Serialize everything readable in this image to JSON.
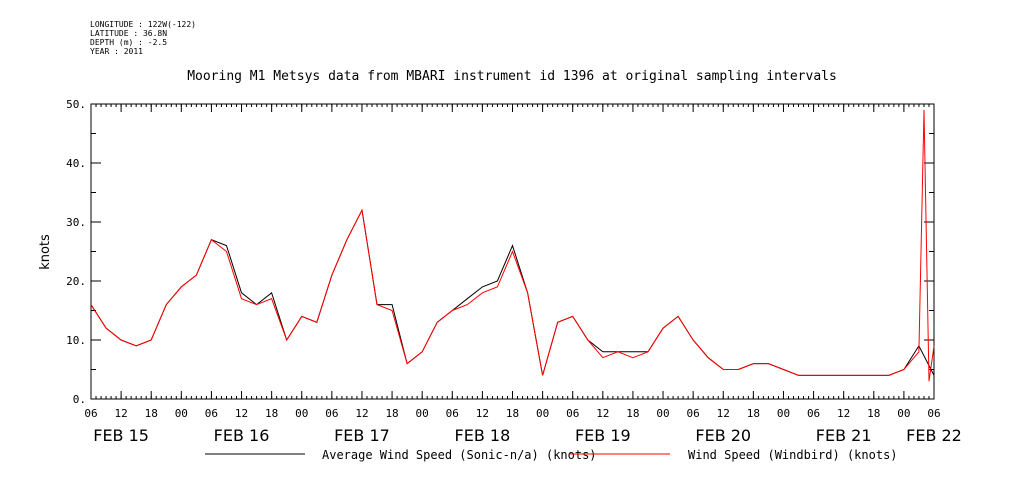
{
  "meta": {
    "longitude": "LONGITUDE : 122W(-122)",
    "latitude": "LATITUDE : 36.8N",
    "depth": "DEPTH (m) : -2.5",
    "year": "YEAR : 2011"
  },
  "chart_data": {
    "type": "line",
    "title": "Mooring M1 Metsys data from MBARI instrument id 1396 at original sampling intervals",
    "ylabel": "knots",
    "xlabel": "",
    "ylim": [
      0,
      50
    ],
    "xlim_hours": [
      0,
      168
    ],
    "y_ticks": [
      "0.",
      "10.",
      "20.",
      "30.",
      "40.",
      "50."
    ],
    "y_tick_values": [
      0,
      10,
      20,
      30,
      40,
      50
    ],
    "x_hour_ticks": [
      "06",
      "12",
      "18",
      "00",
      "06",
      "12",
      "18",
      "00",
      "06",
      "12",
      "18",
      "00",
      "06",
      "12",
      "18",
      "00",
      "06",
      "12",
      "18",
      "00",
      "06",
      "12",
      "18",
      "00",
      "06",
      "12",
      "18",
      "00",
      "06"
    ],
    "day_labels": [
      "FEB 15",
      "FEB 16",
      "FEB 17",
      "FEB 18",
      "FEB 19",
      "FEB 20",
      "FEB 21",
      "FEB 22"
    ],
    "legend_position": "bottom",
    "series": [
      {
        "name": "Average Wind Speed (Sonic-n/a) (knots)",
        "color": "#000000",
        "x": [
          0,
          3,
          6,
          9,
          12,
          15,
          18,
          21,
          24,
          27,
          30,
          33,
          36,
          39,
          42,
          45,
          48,
          51,
          54,
          57,
          60,
          63,
          66,
          69,
          72,
          75,
          78,
          81,
          84,
          87,
          90,
          93,
          96,
          99,
          102,
          105,
          108,
          111,
          114,
          117,
          120,
          123,
          126,
          129,
          132,
          135,
          138,
          141,
          144,
          147,
          150,
          153,
          156,
          159,
          162,
          165,
          168
        ],
        "values": [
          16,
          12,
          10,
          9,
          10,
          16,
          19,
          21,
          27,
          26,
          18,
          16,
          18,
          10,
          14,
          13,
          21,
          27,
          32,
          16,
          16,
          6,
          8,
          13,
          15,
          17,
          19,
          20,
          26,
          18,
          4,
          13,
          14,
          10,
          8,
          8,
          8,
          8,
          12,
          14,
          10,
          7,
          5,
          5,
          6,
          6,
          5,
          4,
          4,
          4,
          4,
          4,
          4,
          4,
          5,
          9,
          4
        ]
      },
      {
        "name": "Wind Speed (Windbird) (knots)",
        "color": "#ff0000",
        "x": [
          0,
          3,
          6,
          9,
          12,
          15,
          18,
          21,
          24,
          27,
          30,
          33,
          36,
          39,
          42,
          45,
          48,
          51,
          54,
          57,
          60,
          63,
          66,
          69,
          72,
          75,
          78,
          81,
          84,
          87,
          90,
          93,
          96,
          99,
          102,
          105,
          108,
          111,
          114,
          117,
          120,
          123,
          126,
          129,
          132,
          135,
          138,
          141,
          144,
          147,
          150,
          153,
          156,
          159,
          162,
          165,
          166,
          167,
          168
        ],
        "values": [
          16,
          12,
          10,
          9,
          10,
          16,
          19,
          21,
          27,
          25,
          17,
          16,
          17,
          10,
          14,
          13,
          21,
          27,
          32,
          16,
          15,
          6,
          8,
          13,
          15,
          16,
          18,
          19,
          25,
          18,
          4,
          13,
          14,
          10,
          7,
          8,
          7,
          8,
          12,
          14,
          10,
          7,
          5,
          5,
          6,
          6,
          5,
          4,
          4,
          4,
          4,
          4,
          4,
          4,
          5,
          8,
          49,
          3,
          9
        ]
      }
    ]
  }
}
